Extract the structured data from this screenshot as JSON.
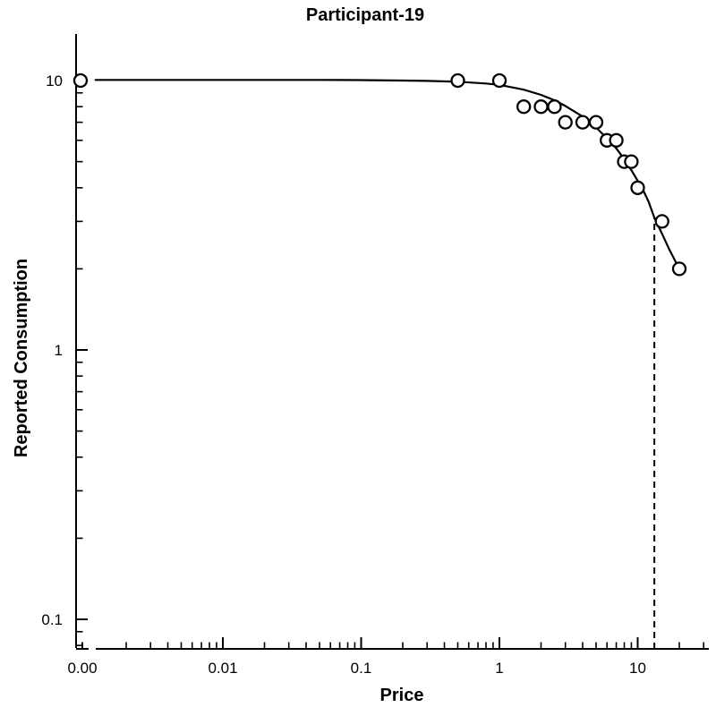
{
  "figure": {
    "title": "Participant-19",
    "x_axis": {
      "label": "Price",
      "scale": "log10",
      "broken_at_zero": true,
      "major_ticks": [
        {
          "value": 0,
          "label": "0.00"
        },
        {
          "value": 0.01,
          "label": "0.01"
        },
        {
          "value": 0.1,
          "label": "0.1"
        },
        {
          "value": 1,
          "label": "1"
        },
        {
          "value": 10,
          "label": "10"
        }
      ]
    },
    "y_axis": {
      "label": "Reported Consumption",
      "scale": "log10",
      "major_ticks": [
        {
          "value": 10,
          "label": "10"
        },
        {
          "value": 1,
          "label": "1"
        },
        {
          "value": 0.1,
          "label": "0.1"
        }
      ]
    },
    "colors": {
      "foreground": "#000000",
      "background": "#ffffff"
    }
  },
  "chart_data": {
    "type": "scatter",
    "title": "Participant-19",
    "xlabel": "Price",
    "ylabel": "Reported Consumption",
    "x_scale": "log",
    "y_scale": "log",
    "xlim": [
      0.0012,
      33
    ],
    "ylim": [
      0.078,
      15
    ],
    "x_tick_labels": [
      "0.00",
      "0.01",
      "0.1",
      "1",
      "10"
    ],
    "y_tick_labels": [
      "10",
      "1",
      "0.1"
    ],
    "grid": false,
    "legend": false,
    "series": [
      {
        "name": "reported-consumption-points",
        "type": "scatter",
        "marker": "open-circle",
        "x": [
          0,
          0.5,
          1,
          1.5,
          2,
          2.5,
          3,
          4,
          5,
          6,
          7,
          8,
          9,
          10,
          15,
          20
        ],
        "y": [
          10,
          10,
          10,
          8,
          8,
          8,
          7,
          7,
          7,
          6,
          6,
          5,
          5,
          4,
          3,
          2
        ]
      },
      {
        "name": "fitted-demand-curve",
        "type": "line",
        "x": [
          0.0012,
          0.005,
          0.02,
          0.05,
          0.1,
          0.2,
          0.3,
          0.5,
          0.8,
          1,
          1.5,
          2,
          2.5,
          3,
          4,
          5,
          6,
          7,
          8,
          9,
          10,
          11,
          12,
          13.2,
          15,
          17,
          20
        ],
        "y": [
          10.05,
          10.05,
          10.05,
          10.05,
          10.04,
          10.0,
          9.97,
          9.9,
          9.75,
          9.64,
          9.25,
          8.85,
          8.45,
          8.05,
          7.35,
          6.7,
          6.1,
          5.6,
          5.1,
          4.65,
          4.25,
          3.9,
          3.55,
          3.1,
          2.7,
          2.35,
          2.0
        ]
      },
      {
        "name": "unit-elasticity-vline",
        "type": "vline",
        "style": "dashed",
        "x": 13.2,
        "y_top": 3.1
      }
    ]
  }
}
